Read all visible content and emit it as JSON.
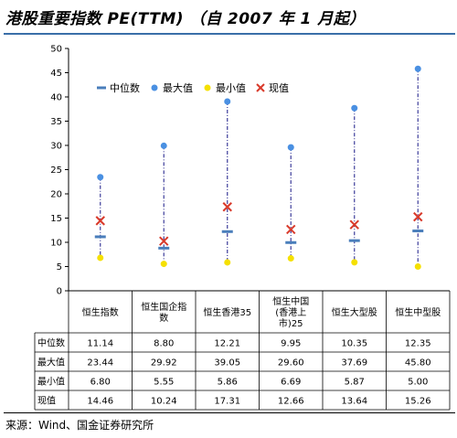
{
  "title": "港股重要指数 PE(TTM) （自 2007 年 1 月起）",
  "source": "来源：Wind、国金证券研究所",
  "colors": {
    "median": "#4a7ebb",
    "max": "#4a90e2",
    "min": "#f5e000",
    "current": "#d93a2b",
    "range_line": "#3c3c9a",
    "title_rule": "#3a6fa8"
  },
  "chart_data": {
    "type": "table",
    "chart_style": "range plot with data table",
    "categories": [
      [
        "恒生指数"
      ],
      [
        "恒生国企指",
        "数"
      ],
      [
        "恒生香港35"
      ],
      [
        "恒生中国",
        "(香港上",
        "市)25"
      ],
      [
        "恒生大型股"
      ],
      [
        "恒生中型股"
      ]
    ],
    "ylim": [
      0,
      50
    ],
    "yticks": [
      "0",
      "5",
      "10",
      "15",
      "20",
      "25",
      "30",
      "35",
      "40",
      "45",
      "50"
    ],
    "legend_position": "top-left",
    "series": [
      {
        "name": "中位数",
        "marker": "dash",
        "values": [
          "11.14",
          "8.80",
          "12.21",
          "9.95",
          "10.35",
          "12.35"
        ]
      },
      {
        "name": "最大值",
        "marker": "circle",
        "values": [
          "23.44",
          "29.92",
          "39.05",
          "29.60",
          "37.69",
          "45.80"
        ]
      },
      {
        "name": "最小值",
        "marker": "circle",
        "values": [
          "6.80",
          "5.55",
          "5.86",
          "6.69",
          "5.87",
          "5.00"
        ]
      },
      {
        "name": "现值",
        "marker": "cross",
        "values": [
          "14.46",
          "10.24",
          "17.31",
          "12.66",
          "13.64",
          "15.26"
        ]
      }
    ]
  }
}
